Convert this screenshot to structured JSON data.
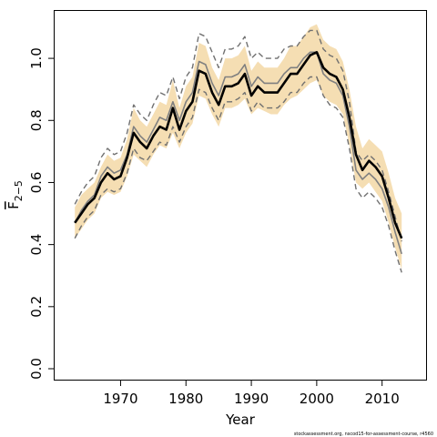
{
  "chart_data": {
    "type": "line",
    "xlabel": "Year",
    "ylabel": "F",
    "ylabel_subscript": "2−5",
    "xlim": [
      1962,
      2014.5
    ],
    "ylim": [
      0,
      1.1
    ],
    "x_ticks": [
      1970,
      1980,
      1990,
      2000,
      2010
    ],
    "x_tick_labels": [
      "1970",
      "1980",
      "1990",
      "2000",
      "2010"
    ],
    "y_ticks": [
      0.0,
      0.2,
      0.4,
      0.6,
      0.8,
      1.0
    ],
    "y_tick_labels": [
      "0.0",
      "0.2",
      "0.4",
      "0.6",
      "0.8",
      "1.0"
    ],
    "grid": false,
    "credit": "stockassessment.org, nscod15-for-assessment-course, r4560",
    "colors": {
      "band": "#f5deb3",
      "main": "#000000",
      "secondary": "#808080",
      "dashed": "#707070"
    },
    "x": [
      1963,
      1964,
      1965,
      1966,
      1967,
      1968,
      1969,
      1970,
      1971,
      1972,
      1973,
      1974,
      1975,
      1976,
      1977,
      1978,
      1979,
      1980,
      1981,
      1982,
      1983,
      1984,
      1985,
      1986,
      1987,
      1988,
      1989,
      1990,
      1991,
      1992,
      1993,
      1994,
      1995,
      1996,
      1997,
      1998,
      1999,
      2000,
      2001,
      2002,
      2003,
      2004,
      2005,
      2006,
      2007,
      2008,
      2009,
      2010,
      2011,
      2012,
      2013
    ],
    "series": [
      {
        "name": "estimate",
        "style": "main",
        "values": [
          0.47,
          0.5,
          0.53,
          0.55,
          0.6,
          0.63,
          0.61,
          0.62,
          0.68,
          0.76,
          0.73,
          0.71,
          0.75,
          0.78,
          0.77,
          0.84,
          0.77,
          0.83,
          0.86,
          0.96,
          0.95,
          0.89,
          0.85,
          0.91,
          0.91,
          0.92,
          0.95,
          0.88,
          0.91,
          0.89,
          0.89,
          0.89,
          0.92,
          0.95,
          0.95,
          0.98,
          1.01,
          1.02,
          0.97,
          0.95,
          0.94,
          0.9,
          0.81,
          0.69,
          0.64,
          0.67,
          0.65,
          0.62,
          0.55,
          0.47,
          0.42
        ]
      },
      {
        "name": "lower",
        "style": "band-edge",
        "values": [
          0.42,
          0.45,
          0.48,
          0.5,
          0.55,
          0.57,
          0.56,
          0.57,
          0.62,
          0.69,
          0.67,
          0.65,
          0.69,
          0.72,
          0.71,
          0.76,
          0.71,
          0.76,
          0.79,
          0.88,
          0.87,
          0.82,
          0.78,
          0.84,
          0.84,
          0.85,
          0.87,
          0.82,
          0.84,
          0.83,
          0.82,
          0.82,
          0.85,
          0.87,
          0.88,
          0.9,
          0.92,
          0.93,
          0.88,
          0.86,
          0.85,
          0.82,
          0.72,
          0.6,
          0.58,
          0.6,
          0.57,
          0.54,
          0.47,
          0.39,
          0.32
        ]
      },
      {
        "name": "upper",
        "style": "band-edge",
        "values": [
          0.52,
          0.56,
          0.58,
          0.6,
          0.65,
          0.69,
          0.67,
          0.68,
          0.74,
          0.84,
          0.8,
          0.78,
          0.82,
          0.86,
          0.85,
          0.93,
          0.84,
          0.91,
          0.94,
          1.05,
          1.04,
          0.97,
          0.93,
          1.0,
          1.0,
          1.01,
          1.04,
          0.96,
          0.99,
          0.97,
          0.97,
          0.97,
          1.0,
          1.04,
          1.04,
          1.07,
          1.1,
          1.11,
          1.06,
          1.04,
          1.03,
          0.99,
          0.9,
          0.78,
          0.71,
          0.74,
          0.72,
          0.7,
          0.63,
          0.55,
          0.5
        ]
      },
      {
        "name": "comparison",
        "style": "secondary",
        "values": [
          0.47,
          0.51,
          0.54,
          0.56,
          0.62,
          0.65,
          0.63,
          0.64,
          0.69,
          0.78,
          0.75,
          0.73,
          0.77,
          0.81,
          0.8,
          0.86,
          0.8,
          0.86,
          0.89,
          0.99,
          0.98,
          0.92,
          0.88,
          0.94,
          0.94,
          0.95,
          0.98,
          0.91,
          0.94,
          0.92,
          0.92,
          0.92,
          0.95,
          0.97,
          0.97,
          1.0,
          1.02,
          1.02,
          0.95,
          0.93,
          0.92,
          0.88,
          0.78,
          0.64,
          0.61,
          0.63,
          0.61,
          0.58,
          0.52,
          0.44,
          0.37
        ]
      },
      {
        "name": "comparison-upper",
        "style": "dashed",
        "values": [
          0.53,
          0.57,
          0.6,
          0.62,
          0.68,
          0.71,
          0.69,
          0.7,
          0.76,
          0.85,
          0.82,
          0.8,
          0.85,
          0.89,
          0.88,
          0.94,
          0.87,
          0.94,
          0.97,
          1.08,
          1.07,
          1.02,
          0.97,
          1.03,
          1.03,
          1.04,
          1.07,
          1.0,
          1.02,
          1.0,
          1.0,
          1.0,
          1.03,
          1.04,
          1.04,
          1.07,
          1.09,
          1.09,
          1.03,
          1.01,
          1.0,
          0.96,
          0.86,
          0.7,
          0.67,
          0.69,
          0.67,
          0.64,
          0.57,
          0.49,
          0.41
        ]
      },
      {
        "name": "comparison-lower",
        "style": "dashed",
        "values": [
          0.42,
          0.46,
          0.49,
          0.51,
          0.56,
          0.58,
          0.57,
          0.58,
          0.63,
          0.71,
          0.68,
          0.67,
          0.7,
          0.73,
          0.72,
          0.78,
          0.73,
          0.78,
          0.81,
          0.9,
          0.89,
          0.84,
          0.8,
          0.86,
          0.86,
          0.87,
          0.89,
          0.83,
          0.86,
          0.84,
          0.84,
          0.84,
          0.86,
          0.89,
          0.89,
          0.92,
          0.94,
          0.94,
          0.88,
          0.85,
          0.84,
          0.81,
          0.71,
          0.58,
          0.55,
          0.57,
          0.55,
          0.52,
          0.46,
          0.38,
          0.31
        ]
      }
    ]
  }
}
